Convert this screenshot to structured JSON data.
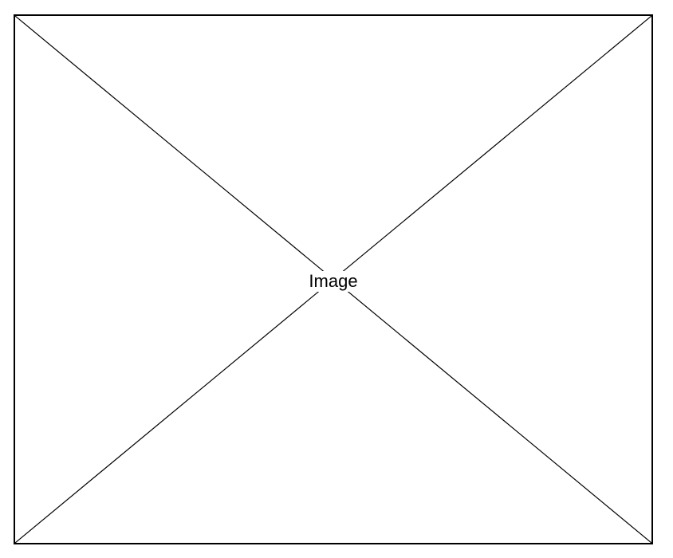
{
  "image_placeholder": {
    "label": "Image",
    "line_color": "#000000",
    "border_color": "#000000",
    "background_color": "#ffffff"
  }
}
